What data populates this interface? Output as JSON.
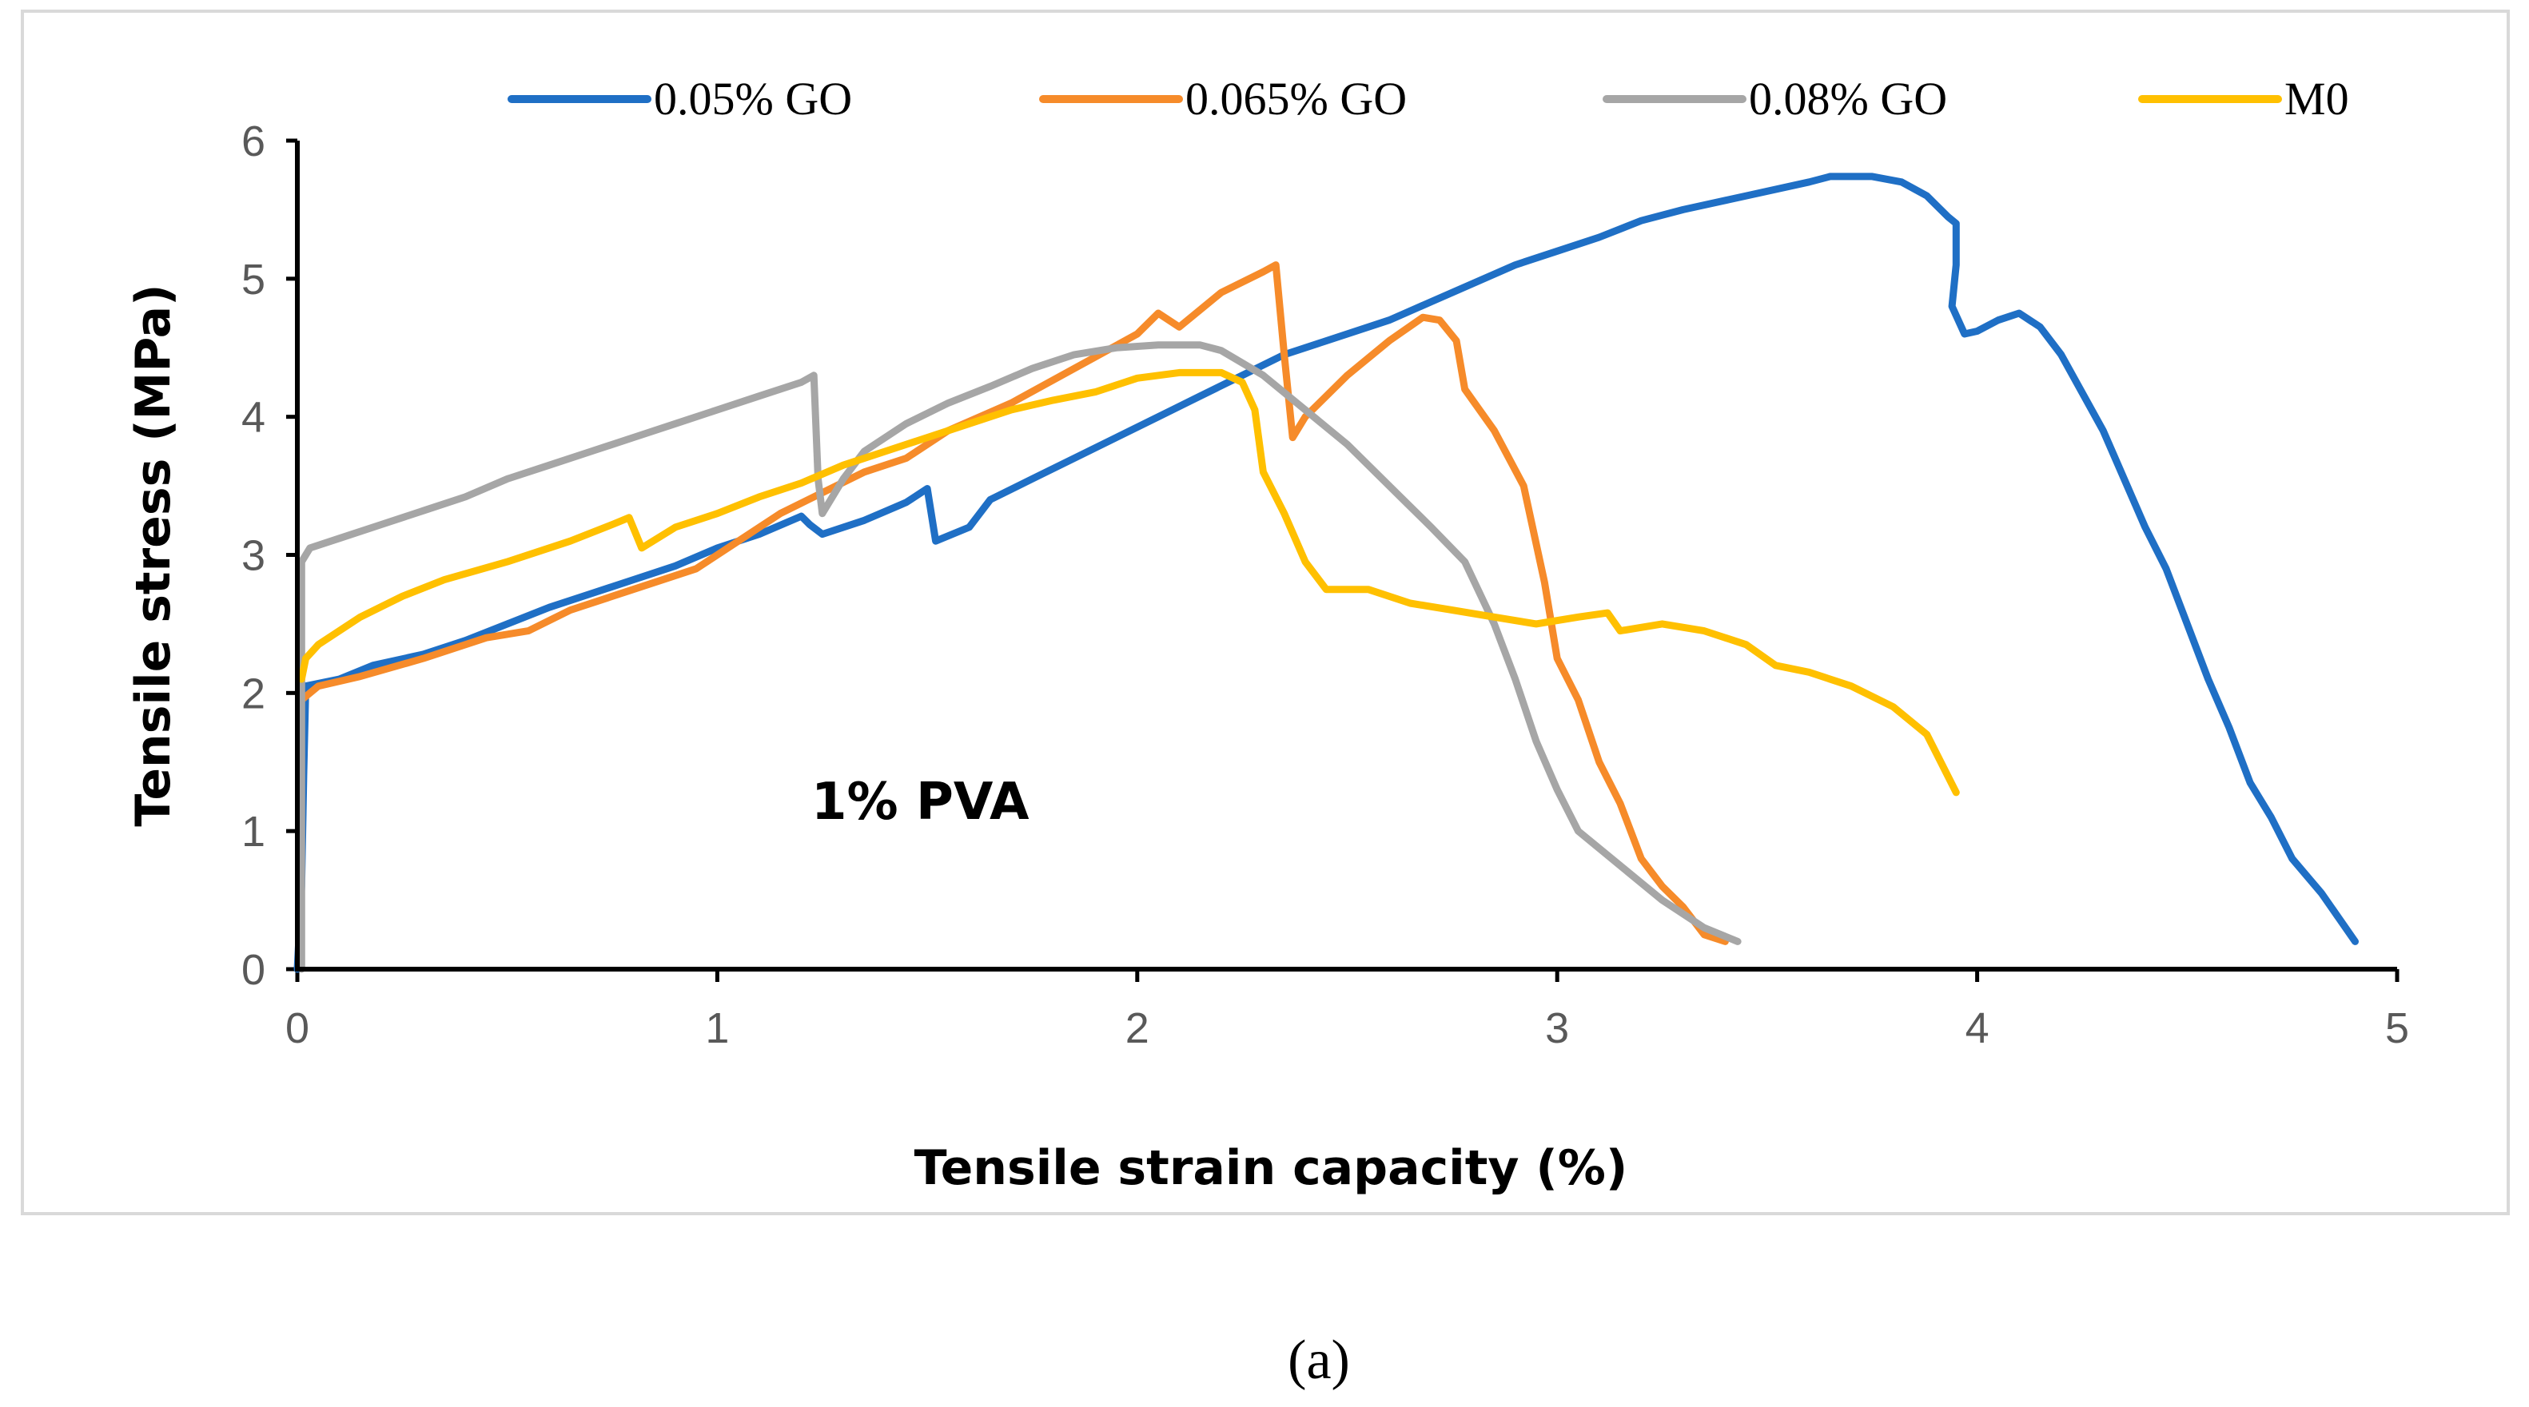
{
  "chart_data": {
    "type": "line",
    "xlabel": "Tensile strain capacity (%)",
    "ylabel": "Tensile stress (MPa)",
    "xlim": [
      0,
      5
    ],
    "ylim": [
      0,
      6
    ],
    "xticks": [
      "0",
      "1",
      "2",
      "3",
      "4",
      "5"
    ],
    "yticks": [
      "0",
      "1",
      "2",
      "3",
      "4",
      "5",
      "6"
    ],
    "annotation": "1% PVA",
    "caption": "(a)",
    "legend_position": "top",
    "series": [
      {
        "name": "0.05% GO",
        "color": "#1f6fc5",
        "points": [
          [
            0.0,
            0.0
          ],
          [
            0.01,
            0.6
          ],
          [
            0.015,
            1.4
          ],
          [
            0.02,
            2.05
          ],
          [
            0.1,
            2.1
          ],
          [
            0.18,
            2.2
          ],
          [
            0.3,
            2.28
          ],
          [
            0.4,
            2.38
          ],
          [
            0.5,
            2.5
          ],
          [
            0.6,
            2.62
          ],
          [
            0.7,
            2.72
          ],
          [
            0.8,
            2.82
          ],
          [
            0.9,
            2.92
          ],
          [
            1.0,
            3.05
          ],
          [
            1.1,
            3.15
          ],
          [
            1.2,
            3.28
          ],
          [
            1.22,
            3.22
          ],
          [
            1.25,
            3.15
          ],
          [
            1.35,
            3.25
          ],
          [
            1.45,
            3.38
          ],
          [
            1.5,
            3.48
          ],
          [
            1.52,
            3.1
          ],
          [
            1.6,
            3.2
          ],
          [
            1.65,
            3.4
          ],
          [
            1.75,
            3.55
          ],
          [
            1.85,
            3.7
          ],
          [
            1.95,
            3.85
          ],
          [
            2.05,
            4.0
          ],
          [
            2.15,
            4.15
          ],
          [
            2.25,
            4.3
          ],
          [
            2.35,
            4.45
          ],
          [
            2.45,
            4.55
          ],
          [
            2.6,
            4.7
          ],
          [
            2.75,
            4.9
          ],
          [
            2.9,
            5.1
          ],
          [
            3.0,
            5.2
          ],
          [
            3.1,
            5.3
          ],
          [
            3.2,
            5.42
          ],
          [
            3.3,
            5.5
          ],
          [
            3.45,
            5.6
          ],
          [
            3.6,
            5.7
          ],
          [
            3.65,
            5.74
          ],
          [
            3.75,
            5.74
          ],
          [
            3.82,
            5.7
          ],
          [
            3.88,
            5.6
          ],
          [
            3.93,
            5.45
          ],
          [
            3.95,
            5.4
          ],
          [
            3.95,
            5.1
          ],
          [
            3.94,
            4.8
          ],
          [
            3.97,
            4.6
          ],
          [
            4.0,
            4.62
          ],
          [
            4.05,
            4.7
          ],
          [
            4.1,
            4.75
          ],
          [
            4.15,
            4.65
          ],
          [
            4.2,
            4.45
          ],
          [
            4.3,
            3.9
          ],
          [
            4.4,
            3.2
          ],
          [
            4.45,
            2.9
          ],
          [
            4.5,
            2.5
          ],
          [
            4.55,
            2.1
          ],
          [
            4.6,
            1.75
          ],
          [
            4.65,
            1.35
          ],
          [
            4.7,
            1.1
          ],
          [
            4.75,
            0.8
          ],
          [
            4.82,
            0.55
          ],
          [
            4.9,
            0.2
          ]
        ]
      },
      {
        "name": "0.065% GO",
        "color": "#f68b2a",
        "points": [
          [
            0.01,
            1.95
          ],
          [
            0.05,
            2.05
          ],
          [
            0.15,
            2.12
          ],
          [
            0.3,
            2.25
          ],
          [
            0.45,
            2.4
          ],
          [
            0.55,
            2.45
          ],
          [
            0.65,
            2.6
          ],
          [
            0.8,
            2.75
          ],
          [
            0.95,
            2.9
          ],
          [
            1.05,
            3.1
          ],
          [
            1.15,
            3.3
          ],
          [
            1.25,
            3.45
          ],
          [
            1.35,
            3.6
          ],
          [
            1.45,
            3.7
          ],
          [
            1.55,
            3.9
          ],
          [
            1.7,
            4.1
          ],
          [
            1.85,
            4.35
          ],
          [
            2.0,
            4.6
          ],
          [
            2.05,
            4.75
          ],
          [
            2.1,
            4.65
          ],
          [
            2.2,
            4.9
          ],
          [
            2.3,
            5.05
          ],
          [
            2.33,
            5.1
          ],
          [
            2.35,
            4.45
          ],
          [
            2.37,
            3.85
          ],
          [
            2.4,
            4.0
          ],
          [
            2.5,
            4.3
          ],
          [
            2.6,
            4.55
          ],
          [
            2.68,
            4.72
          ],
          [
            2.72,
            4.7
          ],
          [
            2.76,
            4.55
          ],
          [
            2.78,
            4.2
          ],
          [
            2.85,
            3.9
          ],
          [
            2.92,
            3.5
          ],
          [
            2.97,
            2.8
          ],
          [
            3.0,
            2.25
          ],
          [
            3.05,
            1.95
          ],
          [
            3.1,
            1.5
          ],
          [
            3.15,
            1.2
          ],
          [
            3.2,
            0.8
          ],
          [
            3.25,
            0.6
          ],
          [
            3.3,
            0.45
          ],
          [
            3.35,
            0.25
          ],
          [
            3.4,
            0.2
          ]
        ]
      },
      {
        "name": "0.08% GO",
        "color": "#a6a6a6",
        "points": [
          [
            0.01,
            0.0
          ],
          [
            0.01,
            2.95
          ],
          [
            0.03,
            3.05
          ],
          [
            0.1,
            3.12
          ],
          [
            0.2,
            3.22
          ],
          [
            0.3,
            3.32
          ],
          [
            0.4,
            3.42
          ],
          [
            0.5,
            3.55
          ],
          [
            0.6,
            3.65
          ],
          [
            0.7,
            3.75
          ],
          [
            0.8,
            3.85
          ],
          [
            0.9,
            3.95
          ],
          [
            1.0,
            4.05
          ],
          [
            1.1,
            4.15
          ],
          [
            1.2,
            4.25
          ],
          [
            1.23,
            4.3
          ],
          [
            1.24,
            3.55
          ],
          [
            1.25,
            3.3
          ],
          [
            1.3,
            3.55
          ],
          [
            1.35,
            3.75
          ],
          [
            1.45,
            3.95
          ],
          [
            1.55,
            4.1
          ],
          [
            1.65,
            4.22
          ],
          [
            1.75,
            4.35
          ],
          [
            1.85,
            4.45
          ],
          [
            1.95,
            4.5
          ],
          [
            2.05,
            4.52
          ],
          [
            2.15,
            4.52
          ],
          [
            2.2,
            4.48
          ],
          [
            2.3,
            4.3
          ],
          [
            2.4,
            4.05
          ],
          [
            2.5,
            3.8
          ],
          [
            2.6,
            3.5
          ],
          [
            2.7,
            3.2
          ],
          [
            2.78,
            2.95
          ],
          [
            2.85,
            2.5
          ],
          [
            2.9,
            2.1
          ],
          [
            2.95,
            1.65
          ],
          [
            3.0,
            1.3
          ],
          [
            3.05,
            1.0
          ],
          [
            3.15,
            0.75
          ],
          [
            3.25,
            0.5
          ],
          [
            3.35,
            0.3
          ],
          [
            3.43,
            0.2
          ]
        ]
      },
      {
        "name": "M0",
        "color": "#ffc000",
        "points": [
          [
            0.01,
            2.1
          ],
          [
            0.02,
            2.25
          ],
          [
            0.05,
            2.35
          ],
          [
            0.15,
            2.55
          ],
          [
            0.25,
            2.7
          ],
          [
            0.35,
            2.82
          ],
          [
            0.5,
            2.95
          ],
          [
            0.65,
            3.1
          ],
          [
            0.75,
            3.22
          ],
          [
            0.79,
            3.27
          ],
          [
            0.82,
            3.05
          ],
          [
            0.9,
            3.2
          ],
          [
            1.0,
            3.3
          ],
          [
            1.1,
            3.42
          ],
          [
            1.2,
            3.52
          ],
          [
            1.3,
            3.65
          ],
          [
            1.4,
            3.75
          ],
          [
            1.5,
            3.85
          ],
          [
            1.6,
            3.95
          ],
          [
            1.7,
            4.05
          ],
          [
            1.8,
            4.12
          ],
          [
            1.9,
            4.18
          ],
          [
            2.0,
            4.28
          ],
          [
            2.1,
            4.32
          ],
          [
            2.2,
            4.32
          ],
          [
            2.25,
            4.25
          ],
          [
            2.28,
            4.05
          ],
          [
            2.3,
            3.6
          ],
          [
            2.35,
            3.3
          ],
          [
            2.4,
            2.95
          ],
          [
            2.45,
            2.75
          ],
          [
            2.55,
            2.75
          ],
          [
            2.65,
            2.65
          ],
          [
            2.75,
            2.6
          ],
          [
            2.85,
            2.55
          ],
          [
            2.95,
            2.5
          ],
          [
            3.05,
            2.55
          ],
          [
            3.12,
            2.58
          ],
          [
            3.15,
            2.45
          ],
          [
            3.25,
            2.5
          ],
          [
            3.35,
            2.45
          ],
          [
            3.45,
            2.35
          ],
          [
            3.52,
            2.2
          ],
          [
            3.6,
            2.15
          ],
          [
            3.7,
            2.05
          ],
          [
            3.8,
            1.9
          ],
          [
            3.88,
            1.7
          ],
          [
            3.95,
            1.28
          ]
        ]
      }
    ]
  }
}
